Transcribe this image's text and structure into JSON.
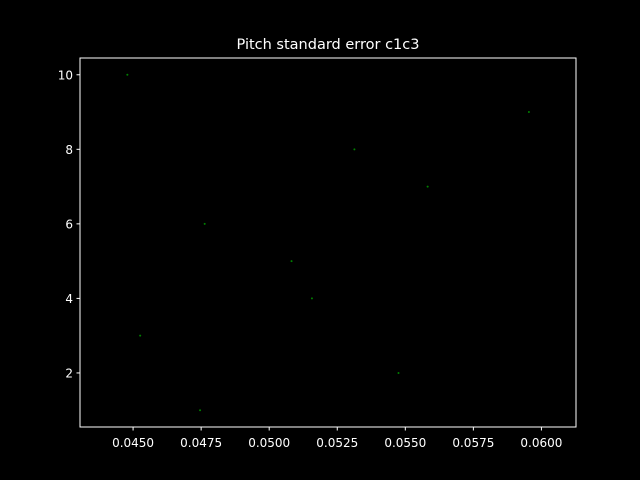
{
  "chart_data": {
    "type": "scatter",
    "title": "Pitch standard error c1c3",
    "xlabel": "",
    "ylabel": "",
    "xlim": [
      0.04305,
      0.06127
    ],
    "ylim": [
      0.55,
      10.45
    ],
    "xticks": [
      "0.0450",
      "0.0475",
      "0.0500",
      "0.0525",
      "0.0550",
      "0.0575",
      "0.0600"
    ],
    "yticks": [
      "2",
      "4",
      "6",
      "8",
      "10"
    ],
    "grid": false,
    "legend": "none",
    "marker_color": "#008000",
    "background": "#000000",
    "foreground": "#ffffff",
    "points": [
      {
        "x": 0.04746,
        "y": 1
      },
      {
        "x": 0.05475,
        "y": 2
      },
      {
        "x": 0.04526,
        "y": 3
      },
      {
        "x": 0.05157,
        "y": 4
      },
      {
        "x": 0.05082,
        "y": 5
      },
      {
        "x": 0.04763,
        "y": 6
      },
      {
        "x": 0.05582,
        "y": 7
      },
      {
        "x": 0.05313,
        "y": 8
      },
      {
        "x": 0.05954,
        "y": 9
      },
      {
        "x": 0.04479,
        "y": 10
      }
    ]
  }
}
